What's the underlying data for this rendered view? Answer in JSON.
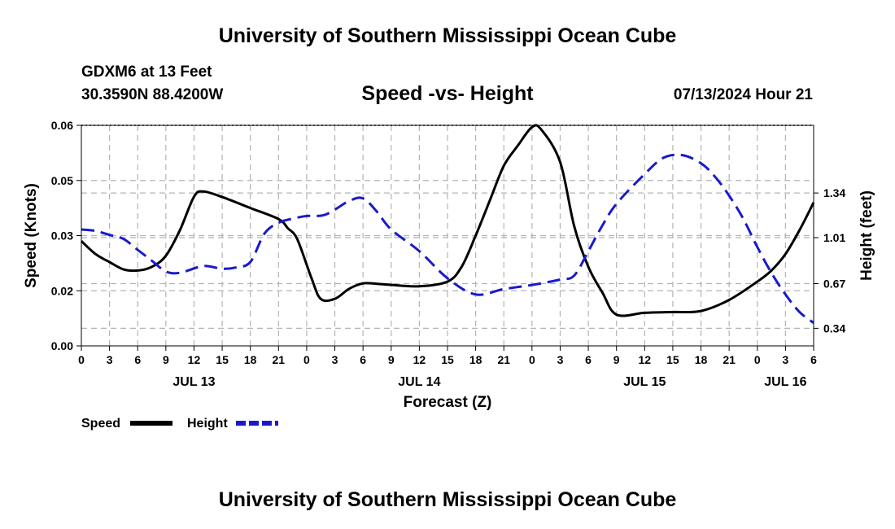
{
  "header": {
    "title": "University of Southern Mississippi Ocean Cube",
    "station": "GDXM6 at 13 Feet",
    "coords": "30.3590N  88.4200W",
    "datetime": "07/13/2024 Hour 21"
  },
  "footer": {
    "title": "University of Southern Mississippi Ocean Cube"
  },
  "colors": {
    "speed": "#000000",
    "height": "#1a1acc",
    "grid": "#b4b4b4"
  },
  "chart_data": {
    "type": "line",
    "title": "Speed -vs- Height",
    "xlabel": "Forecast (Z)",
    "ylabel": "Speed (Knots)",
    "y2label": "Height (feet)",
    "x_ticks": [
      {
        "h": 0,
        "label": "0"
      },
      {
        "h": 3,
        "label": "3"
      },
      {
        "h": 6,
        "label": "6"
      },
      {
        "h": 9,
        "label": "9"
      },
      {
        "h": 12,
        "label": "12"
      },
      {
        "h": 15,
        "label": "15"
      },
      {
        "h": 18,
        "label": "18"
      },
      {
        "h": 21,
        "label": "21"
      },
      {
        "h": 24,
        "label": "0"
      },
      {
        "h": 27,
        "label": "3"
      },
      {
        "h": 30,
        "label": "6"
      },
      {
        "h": 33,
        "label": "9"
      },
      {
        "h": 36,
        "label": "12"
      },
      {
        "h": 39,
        "label": "15"
      },
      {
        "h": 42,
        "label": "18"
      },
      {
        "h": 45,
        "label": "21"
      },
      {
        "h": 48,
        "label": "0"
      },
      {
        "h": 51,
        "label": "3"
      },
      {
        "h": 54,
        "label": "6"
      },
      {
        "h": 57,
        "label": "9"
      },
      {
        "h": 60,
        "label": "12"
      },
      {
        "h": 63,
        "label": "15"
      },
      {
        "h": 66,
        "label": "18"
      },
      {
        "h": 69,
        "label": "21"
      },
      {
        "h": 72,
        "label": "0"
      },
      {
        "h": 75,
        "label": "3"
      },
      {
        "h": 78,
        "label": "6"
      }
    ],
    "date_labels": [
      {
        "h": 12,
        "label": "JUL 13"
      },
      {
        "h": 36,
        "label": "JUL 14"
      },
      {
        "h": 60,
        "label": "JUL 15"
      },
      {
        "h": 75,
        "label": "JUL 16"
      }
    ],
    "xlim": [
      0,
      78
    ],
    "ylim": [
      0,
      0.06
    ],
    "y_ticks": [
      {
        "v": 0.0,
        "label": "0.00"
      },
      {
        "v": 0.015,
        "label": "0.02"
      },
      {
        "v": 0.03,
        "label": "0.03"
      },
      {
        "v": 0.045,
        "label": "0.05"
      },
      {
        "v": 0.06,
        "label": "0.06"
      }
    ],
    "y2lim": [
      0.21,
      1.84
    ],
    "y2_ticks": [
      {
        "v": 0.34,
        "label": "0.34"
      },
      {
        "v": 0.67,
        "label": "0.67"
      },
      {
        "v": 1.01,
        "label": "1.01"
      },
      {
        "v": 1.34,
        "label": "1.34"
      }
    ],
    "series": [
      {
        "name": "Speed",
        "axis": "left",
        "style": "solid",
        "x": [
          0,
          1.5,
          3,
          4.5,
          6,
          7.5,
          9,
          10.5,
          12,
          13,
          15,
          18,
          21,
          22,
          23,
          24.5,
          25.5,
          27,
          28.5,
          30,
          31.5,
          33,
          36,
          39,
          40.5,
          42,
          43.5,
          45,
          46.5,
          48,
          49,
          51,
          52.5,
          54,
          55.5,
          57,
          60,
          63,
          66,
          69,
          72,
          73.5,
          75,
          76.5,
          78
        ],
        "y": [
          0.0285,
          0.025,
          0.0228,
          0.0208,
          0.0205,
          0.0215,
          0.0245,
          0.0315,
          0.0406,
          0.042,
          0.0405,
          0.0375,
          0.0345,
          0.032,
          0.029,
          0.0185,
          0.0128,
          0.0128,
          0.0155,
          0.017,
          0.0169,
          0.0166,
          0.0162,
          0.0175,
          0.0215,
          0.03,
          0.0395,
          0.049,
          0.0545,
          0.0595,
          0.0588,
          0.05,
          0.0325,
          0.0215,
          0.0145,
          0.0085,
          0.009,
          0.0092,
          0.0095,
          0.0125,
          0.0175,
          0.0205,
          0.025,
          0.0315,
          0.039
        ]
      },
      {
        "name": "Height",
        "axis": "right",
        "style": "dashed",
        "x": [
          0,
          1.5,
          3,
          4.5,
          6,
          7.5,
          9,
          10.5,
          13,
          15,
          16.5,
          18,
          19.5,
          21,
          22.5,
          24,
          26,
          28.5,
          30,
          31.5,
          33,
          36,
          39,
          42,
          45,
          48,
          51,
          52.5,
          54,
          55.5,
          57,
          60,
          62,
          64,
          66,
          67.5,
          69,
          70.5,
          72,
          73.5,
          75,
          76.5,
          78
        ],
        "y": [
          1.07,
          1.06,
          1.03,
          1.0,
          0.92,
          0.84,
          0.76,
          0.75,
          0.8,
          0.78,
          0.79,
          0.83,
          1.04,
          1.12,
          1.15,
          1.17,
          1.18,
          1.28,
          1.3,
          1.2,
          1.07,
          0.91,
          0.71,
          0.59,
          0.63,
          0.66,
          0.7,
          0.73,
          0.91,
          1.1,
          1.26,
          1.48,
          1.6,
          1.62,
          1.56,
          1.46,
          1.32,
          1.15,
          0.94,
          0.75,
          0.59,
          0.46,
          0.38
        ]
      }
    ],
    "legend": {
      "position": "bottom-left",
      "speed_label": "Speed",
      "height_label": "Height"
    }
  }
}
